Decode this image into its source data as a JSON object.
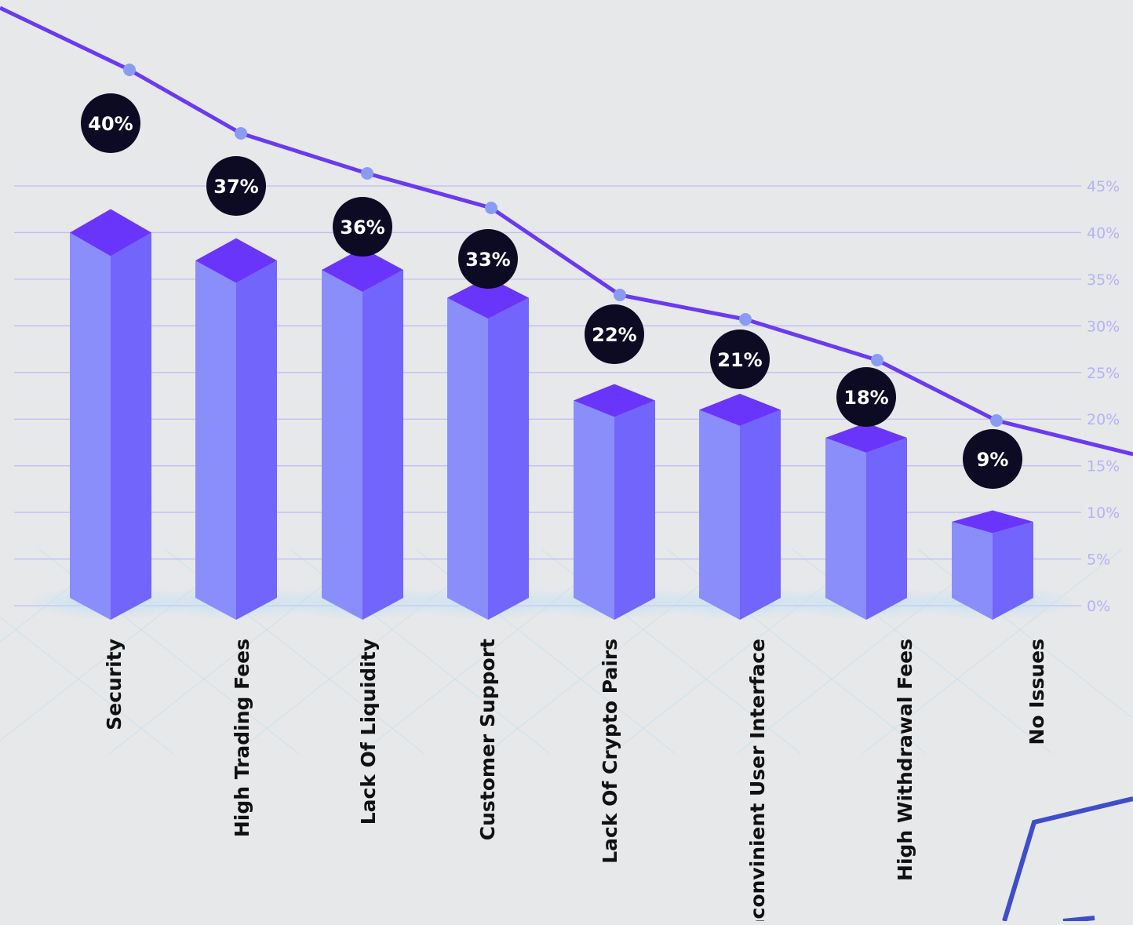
{
  "chart_data": {
    "type": "bar",
    "categories": [
      "Security",
      "High Trading Fees",
      "Lack Of Liquidity",
      "Customer Support",
      "Lack Of Crypto Pairs",
      "Inconvinient User Interface",
      "High Withdrawal Fees",
      "No Issues"
    ],
    "values": [
      40,
      37,
      36,
      33,
      22,
      21,
      18,
      9
    ],
    "value_labels": [
      "40%",
      "37%",
      "36%",
      "33%",
      "22%",
      "21%",
      "18%",
      "9%"
    ],
    "y_ticks": [
      "0%",
      "5%",
      "10%",
      "15%",
      "20%",
      "25%",
      "30%",
      "35%",
      "40%",
      "45%"
    ],
    "ylim": [
      0,
      45
    ],
    "grid": true,
    "overlay": "trend line through markers above each bar",
    "colors": {
      "bar_front": "#8a8efa",
      "bar_side": "#7265fb",
      "bar_top": "#6a35fb",
      "line": "#6a3af0",
      "marker": "#8a9cf2",
      "label_bubble": "#0d0a24",
      "grid": "#c0bdf6",
      "tick_text": "#b7b1f7"
    }
  }
}
